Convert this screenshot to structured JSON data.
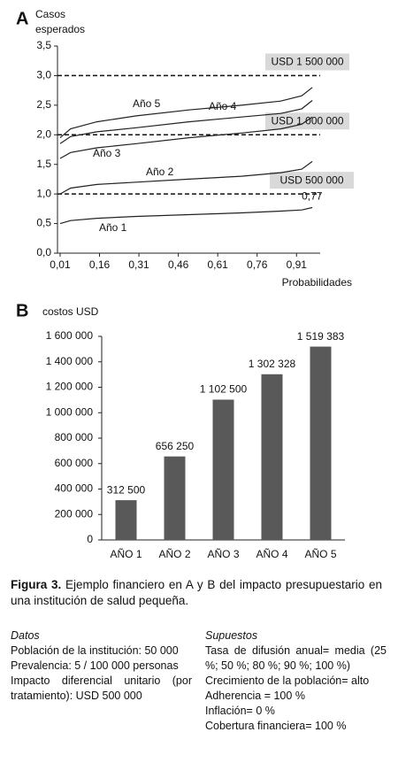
{
  "chart_data": [
    {
      "type": "line",
      "panel": "A",
      "y_label_lines": [
        "Casos",
        "esperados"
      ],
      "x_label": "Probabilidades",
      "x": [
        0.01,
        0.05,
        0.15,
        0.3,
        0.5,
        0.7,
        0.85,
        0.93,
        0.97
      ],
      "series": [
        {
          "name": "Año 1",
          "color": "#222222",
          "values": [
            0.5,
            0.55,
            0.59,
            0.62,
            0.65,
            0.68,
            0.71,
            0.73,
            0.77
          ],
          "value_labels": [
            null,
            null,
            null,
            null,
            null,
            null,
            null,
            null,
            "0,77"
          ]
        },
        {
          "name": "Año 2",
          "color": "#222222",
          "values": [
            1.0,
            1.1,
            1.16,
            1.2,
            1.25,
            1.3,
            1.36,
            1.42,
            1.55
          ]
        },
        {
          "name": "Año 3",
          "color": "#222222",
          "values": [
            1.6,
            1.7,
            1.78,
            1.85,
            1.95,
            2.03,
            2.1,
            2.18,
            2.3
          ]
        },
        {
          "name": "Año 4",
          "color": "#222222",
          "values": [
            1.85,
            1.97,
            2.05,
            2.12,
            2.22,
            2.3,
            2.36,
            2.44,
            2.58
          ]
        },
        {
          "name": "Año 5",
          "color": "#222222",
          "values": [
            1.95,
            2.1,
            2.22,
            2.32,
            2.42,
            2.5,
            2.57,
            2.66,
            2.8
          ]
        }
      ],
      "reference_lines": [
        {
          "value": 1.0,
          "label": "USD 500 000"
        },
        {
          "value": 2.0,
          "label": "USD 1 000 000"
        },
        {
          "value": 3.0,
          "label": "USD 1 500 000"
        }
      ],
      "xlim": [
        0,
        1
      ],
      "xticks": [
        {
          "value": 0.01,
          "label": "0,01"
        },
        {
          "value": 0.16,
          "label": "0,16"
        },
        {
          "value": 0.31,
          "label": "0,31"
        },
        {
          "value": 0.46,
          "label": "0,46"
        },
        {
          "value": 0.61,
          "label": "0,61"
        },
        {
          "value": 0.76,
          "label": "0,76"
        },
        {
          "value": 0.91,
          "label": "0,91"
        }
      ],
      "ylim": [
        0,
        3.5
      ],
      "yticks": [
        {
          "value": 0,
          "label": "0,0"
        },
        {
          "value": 0.5,
          "label": "0,5"
        },
        {
          "value": 1,
          "label": "1,0"
        },
        {
          "value": 1.5,
          "label": "1,5"
        },
        {
          "value": 2,
          "label": "2,0"
        },
        {
          "value": 2.5,
          "label": "2,5"
        },
        {
          "value": 3,
          "label": "3,0"
        },
        {
          "value": 3.5,
          "label": "3,5"
        }
      ]
    },
    {
      "type": "bar",
      "panel": "B",
      "y_label": "costos USD",
      "color": "#595959",
      "categories": [
        "AÑO 1",
        "AÑO 2",
        "AÑO 3",
        "AÑO 4",
        "AÑO 5"
      ],
      "values": [
        312500,
        656250,
        1102500,
        1302328,
        1519383
      ],
      "value_labels": [
        "312 500",
        "656 250",
        "1 102 500",
        "1 302 328",
        "1 519 383"
      ],
      "ylim": [
        0,
        1600000
      ],
      "yticks": [
        0,
        {
          "value": 200000,
          "label": "200 000"
        },
        {
          "value": 400000,
          "label": "400 000"
        },
        {
          "value": 600000,
          "label": "600 000"
        },
        {
          "value": 800000,
          "label": "800 000"
        },
        {
          "value": 1000000,
          "label": "1 000 000"
        },
        {
          "value": 1200000,
          "label": "1 200 000"
        },
        {
          "value": 1400000,
          "label": "1 400 000"
        },
        {
          "value": 1600000,
          "label": "1 600 000"
        }
      ]
    }
  ],
  "caption": {
    "label": "Figura 3.",
    "text": "Ejemplo financiero en A y B del impacto presupuestario en una institución de salud pequeña."
  },
  "datos": {
    "title": "Datos",
    "items": [
      "Población de la institución: 50 000",
      "Prevalencia: 5 / 100 000 personas",
      "Impacto diferencial unitario (por tratamiento): USD 500 000"
    ]
  },
  "supuestos": {
    "title": "Supuestos",
    "items": [
      "Tasa de difusión anual= media (25 %; 50 %; 80 %; 90 %; 100 %)",
      "Crecimiento de la población= alto",
      "Adherencia = 100 %",
      "Inflación= 0 %",
      "Cobertura financiera= 100 %"
    ]
  }
}
